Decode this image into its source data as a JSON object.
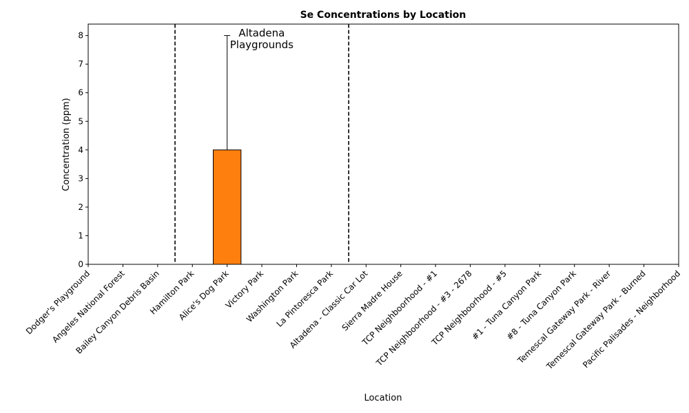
{
  "chart_data": {
    "type": "bar",
    "title": "Se Concentrations by Location",
    "xlabel": "Location",
    "ylabel": "Concentration (ppm)",
    "ylim": [
      0,
      8.4
    ],
    "yticks": [
      0,
      1,
      2,
      3,
      4,
      5,
      6,
      7,
      8
    ],
    "categories": [
      "Dodger's Playground",
      "Angeles National Forest",
      "Bailey Canyon Debris Basin",
      "Hamilton Park",
      "Alice's Dog Park",
      "Victory Park",
      "Washington Park",
      "La Pintoresca Park",
      "Altadena - Classic Car Lot",
      "Sierra Madre House",
      "TCP Neighboorhood - #1",
      "TCP Neighboorhood - #3 - 2678",
      "TCP Neighboorhood - #5",
      "#1 - Tuna Canyon Park",
      "#8 - Tuna Canyon Park",
      "Temescal Gateway Park - River",
      "Temescal Gateway Park - Burned",
      "Pacific Palisades - Neighborhood"
    ],
    "values": [
      0,
      0,
      0,
      0,
      4,
      0,
      0,
      0,
      0,
      0,
      0,
      0,
      0,
      0,
      0,
      0,
      0,
      0
    ],
    "error_upper": [
      0,
      0,
      0,
      0,
      4,
      0,
      0,
      0,
      0,
      0,
      0,
      0,
      0,
      0,
      0,
      0,
      0,
      0
    ],
    "bar_color": "#ff7f0e",
    "bar_edge_color": "#000000",
    "group_dividers_between": [
      2.5,
      7.5
    ],
    "divider_style": "dashed",
    "annotation": {
      "lines": [
        "Altadena",
        "Playgrounds"
      ],
      "near_category": 4.5,
      "y": 7.75
    },
    "grid": false,
    "legend": "none"
  }
}
